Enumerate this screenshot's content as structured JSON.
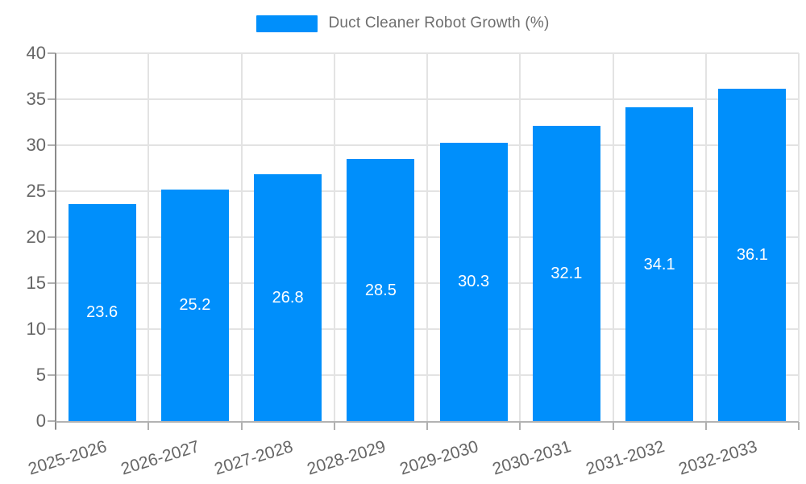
{
  "legend": {
    "label": "Duct Cleaner Robot Growth (%)"
  },
  "colors": {
    "bar": "#008FFB",
    "bar_label": "#FFFFFF",
    "axis_label": "#666666",
    "legend_text": "#6E6E6E",
    "grid": "#E3E3E3",
    "y_axis_line": "#8A8A8A",
    "x_axis_line": "#B3B3B3",
    "tick": "#B0B0B0",
    "background": "#FFFFFF"
  },
  "chart_data": {
    "type": "bar",
    "title": "Duct Cleaner Robot Growth (%)",
    "categories": [
      "2025-2026",
      "2026-2027",
      "2027-2028",
      "2028-2029",
      "2029-2030",
      "2030-2031",
      "2031-2032",
      "2032-2033"
    ],
    "values": [
      23.6,
      25.2,
      26.8,
      28.5,
      30.3,
      32.1,
      34.1,
      36.1
    ],
    "value_labels": [
      "23.6",
      "25.2",
      "26.8",
      "28.5",
      "30.3",
      "32.1",
      "34.1",
      "36.1"
    ],
    "xlabel": "",
    "ylabel": "",
    "ylim": [
      0,
      40
    ],
    "yticks": [
      0,
      5,
      10,
      15,
      20,
      25,
      30,
      35,
      40
    ],
    "ytick_labels": [
      "0",
      "5",
      "10",
      "15",
      "20",
      "25",
      "30",
      "35",
      "40"
    ],
    "grid": true,
    "legend_position": "top",
    "bar_labels_inside": "middle",
    "x_label_rotation_deg": -17
  }
}
